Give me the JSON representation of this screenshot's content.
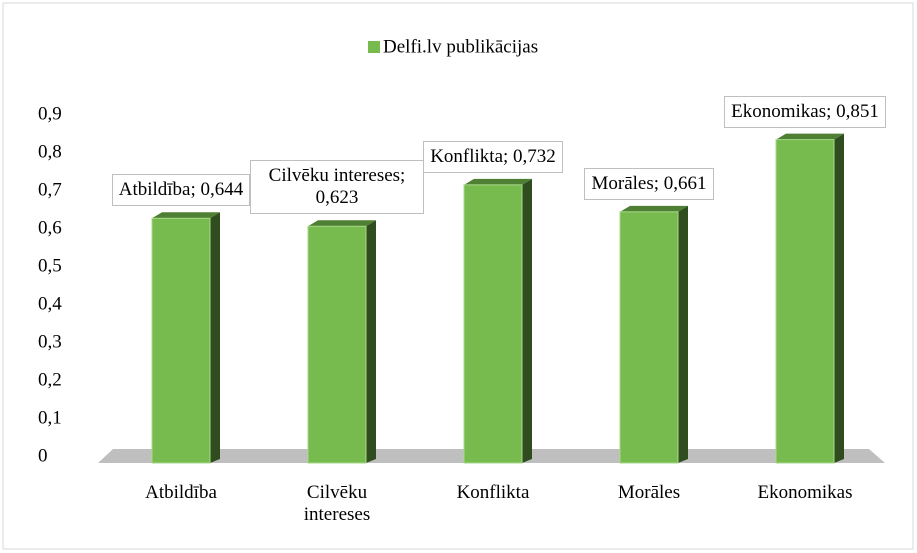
{
  "chart_data": {
    "type": "bar3d",
    "legend": "Delfi.lv publikācijas",
    "categories": [
      "Atbildība",
      "Cilvēku intereses",
      "Konflikta",
      "Morāles",
      "Ekonomikas"
    ],
    "values": [
      0.644,
      0.623,
      0.732,
      0.661,
      0.851
    ],
    "value_labels": [
      "Atbildība; 0,644",
      "Cilvēku intereses; 0,623",
      "Konflikta; 0,732",
      "Morāles; 0,661",
      "Ekonomikas; 0,851"
    ],
    "color": "#77bb4f",
    "ylim": [
      0,
      0.9
    ],
    "yticks": [
      0,
      {
        "value": 0.1,
        "label": "0,1"
      },
      {
        "value": 0.2,
        "label": "0,2"
      },
      {
        "value": 0.3,
        "label": "0,3"
      },
      {
        "value": 0.4,
        "label": "0,4"
      },
      {
        "value": 0.5,
        "label": "0,5"
      },
      {
        "value": 0.6,
        "label": "0,6"
      },
      {
        "value": 0.7,
        "label": "0,7"
      },
      {
        "value": 0.8,
        "label": "0,8"
      },
      {
        "value": 0.9,
        "label": "0,9"
      }
    ]
  }
}
